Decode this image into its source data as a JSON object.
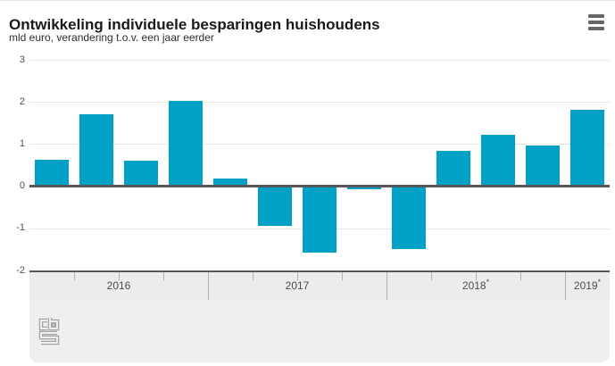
{
  "chart_data": {
    "type": "bar",
    "title": "Ontwikkeling individuele besparingen huishoudens",
    "subtitle": "mld euro, verandering t.o.v. een jaar eerder",
    "xlabel": "",
    "ylabel": "mld euro",
    "ylim": [
      -2,
      3
    ],
    "yticks": [
      3,
      2,
      1,
      0,
      -1,
      -2
    ],
    "grid": true,
    "legend": "none",
    "bar_color": "#00a1c6",
    "zero_line_color": "#58585b",
    "groups": [
      {
        "year": "2016",
        "marker": "",
        "quarterly_values": [
          0.6,
          1.67,
          0.58,
          2.0
        ]
      },
      {
        "year": "2017",
        "marker": "",
        "quarterly_values": [
          0.15,
          -0.95,
          -1.58,
          -0.08
        ]
      },
      {
        "year": "2018",
        "marker": "*",
        "quarterly_values": [
          -1.49,
          0.8,
          1.19,
          0.94
        ]
      },
      {
        "year": "2019",
        "marker": "*",
        "quarterly_values": [
          1.79
        ]
      }
    ]
  },
  "header": {
    "menu_icon": "hamburger-menu-icon"
  },
  "footer": {
    "logo": "cbs-logo"
  },
  "colors": {
    "bar": "#00a1c6",
    "zero_line": "#58585b",
    "gridline": "#e8e8e8",
    "axis_band_bg": "#ececec",
    "axis_band_border": "#58585b",
    "tick": "#b3b3b3",
    "footer_bg": "#efefef",
    "title_text": "#1a1a1a",
    "axis_text": "#4d4d4f",
    "menu_icon": "#666666"
  }
}
